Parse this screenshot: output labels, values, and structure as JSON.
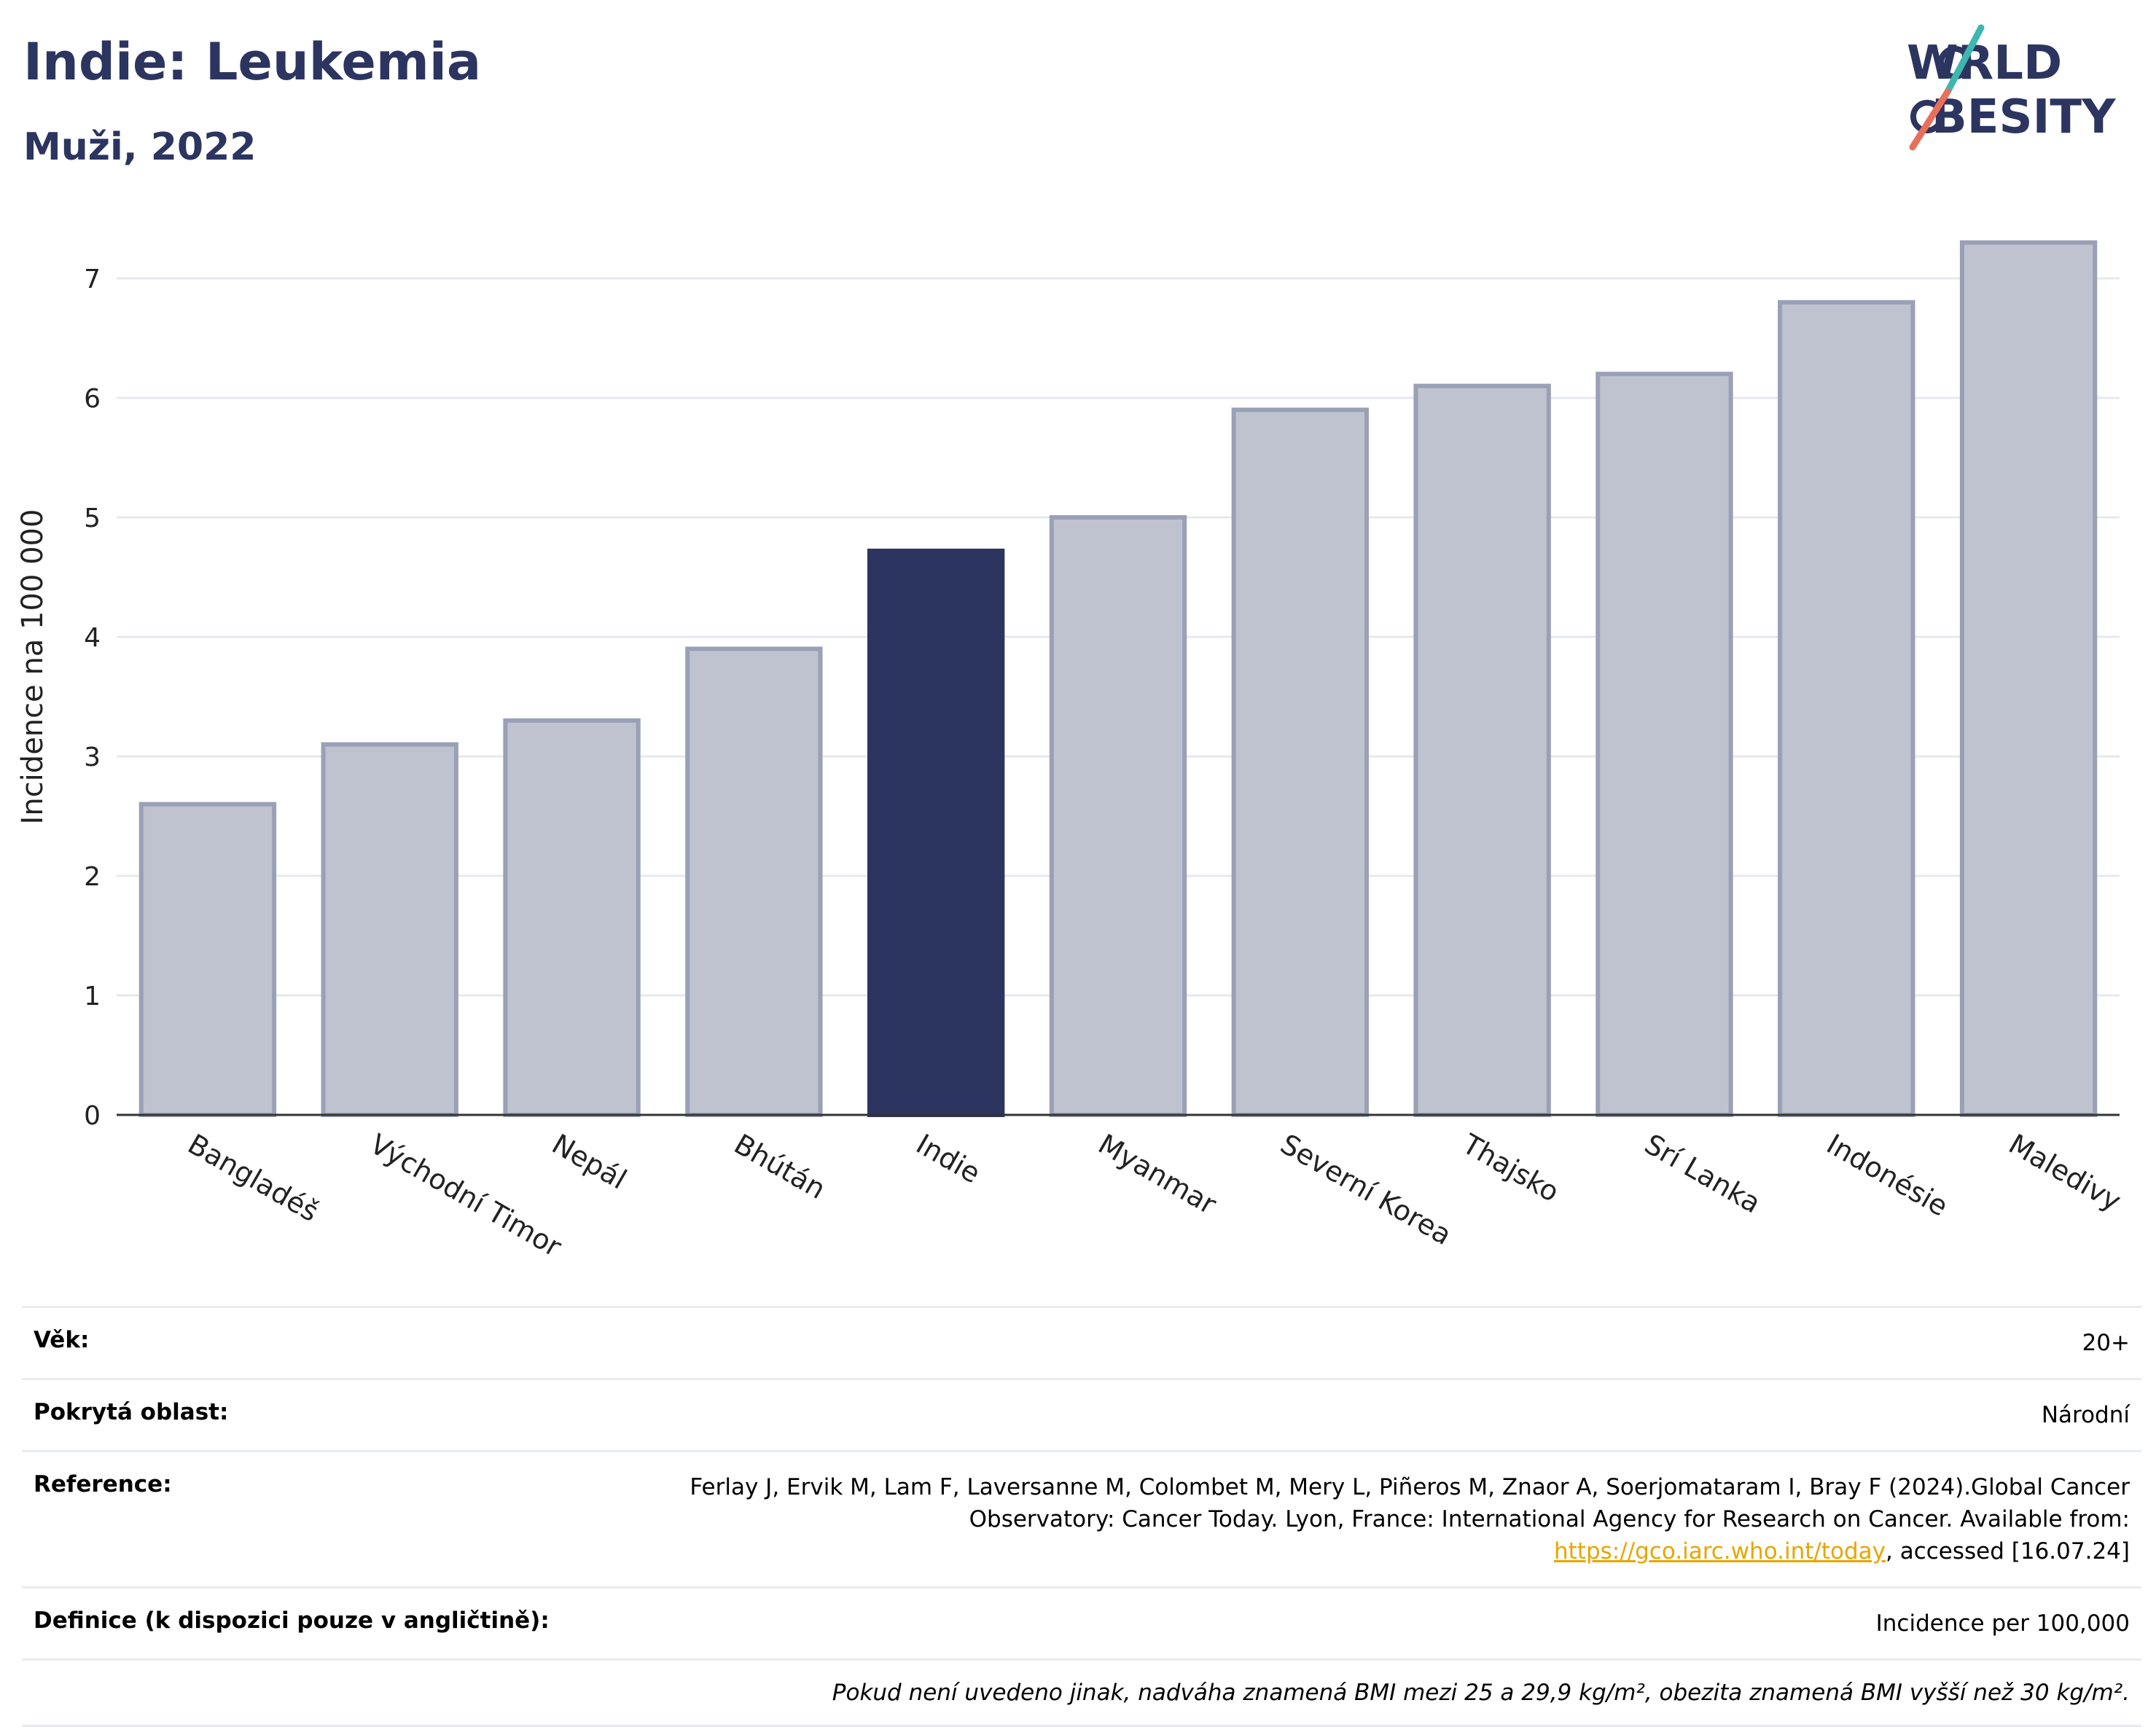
{
  "header": {
    "title": "Indie: Leukemia",
    "subtitle": "Muži, 2022"
  },
  "logo": {
    "line1": "WORLD",
    "line2": "OBESITY",
    "accent_teal": "#3fb6b0",
    "accent_coral": "#e86f5a",
    "brand": "#2c3560"
  },
  "chart_data": {
    "type": "bar",
    "categories": [
      "Bangladéš",
      "Východní Timor",
      "Nepál",
      "Bhútán",
      "Indie",
      "Myanmar",
      "Severní Korea",
      "Thajsko",
      "Srí Lanka",
      "Indonésie",
      "Maledivy"
    ],
    "values": [
      2.6,
      3.1,
      3.3,
      3.9,
      4.72,
      5.0,
      5.9,
      6.1,
      6.2,
      6.8,
      7.3
    ],
    "highlight": "Indie",
    "ylabel": "Incidence na 100 000",
    "xlabel": "",
    "ylim": [
      0,
      7.5
    ],
    "yticks": [
      0,
      1,
      2,
      3,
      4,
      5,
      6,
      7
    ],
    "grid": true,
    "colors": {
      "highlight": "#2c3560",
      "other_fill": "#bfc3d0",
      "other_stroke": "#9aa0b5"
    }
  },
  "info": {
    "rows": [
      {
        "label": "Věk:",
        "value": "20+"
      },
      {
        "label": "Pokrytá oblast:",
        "value": "Národní"
      },
      {
        "label": "Reference:",
        "value": "Ferlay J, Ervik M, Lam F, Laversanne M, Colombet M, Mery L, Piñeros M, Znaor A, Soerjomataram I, Bray F (2024).Global Cancer Observatory: Cancer Today. Lyon, France: International Agency for Research on Cancer. Available from: ",
        "link": "https://gco.iarc.who.int/today",
        "suffix": ", accessed [16.07.24]"
      },
      {
        "label": "Definice (k dispozici pouze v angličtině):",
        "value": "Incidence per 100,000"
      }
    ],
    "note": "Pokud není uvedeno jinak, nadváha znamená BMI mezi 25 a 29,9 kg/m², obezita znamená BMI vyšší než 30 kg/m²."
  }
}
